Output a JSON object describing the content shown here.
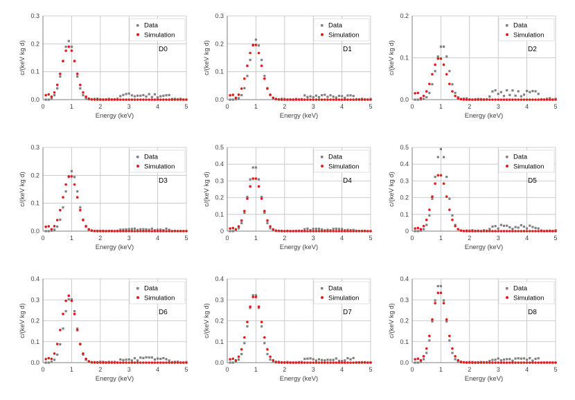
{
  "style": {
    "data_color": "#808080",
    "sim_color": "#e31a1c",
    "grid_color": "#bfbfbf",
    "axis_color": "#7f7f7f"
  },
  "chart_data": [
    {
      "type": "scatter",
      "title": "D0",
      "xlabel": "Energy (keV)",
      "ylabel": "c/(keV kg d)",
      "xlim": [
        0,
        5
      ],
      "ylim": [
        0,
        0.3
      ],
      "yticks": [
        "0.0",
        "0.1",
        "0.2",
        "0.3"
      ],
      "xticks": [
        "0",
        "1",
        "2",
        "3",
        "4",
        "5"
      ],
      "legend": [
        "Data",
        "Simulation"
      ],
      "series": [
        {
          "name": "Data",
          "peak": 0.21,
          "peak_x": 0.9,
          "tail": 0.015
        },
        {
          "name": "Simulation",
          "peak": 0.19,
          "peak_x": 0.9,
          "tail": 0.0
        }
      ]
    },
    {
      "type": "scatter",
      "title": "D1",
      "xlabel": "Energy (keV)",
      "ylabel": "c/(keV kg d)",
      "xlim": [
        0,
        5
      ],
      "ylim": [
        0,
        0.3
      ],
      "yticks": [
        "0.0",
        "0.1",
        "0.2",
        "0.3"
      ],
      "xticks": [
        "0",
        "1",
        "2",
        "3",
        "4",
        "5"
      ],
      "legend": [
        "Data",
        "Simulation"
      ],
      "series": [
        {
          "name": "Data",
          "peak": 0.215,
          "peak_x": 1.0,
          "tail": 0.013
        },
        {
          "name": "Simulation",
          "peak": 0.2,
          "peak_x": 0.95,
          "tail": 0.0
        }
      ]
    },
    {
      "type": "scatter",
      "title": "D2",
      "xlabel": "Energy (keV)",
      "ylabel": "c/(keV kg d)",
      "xlim": [
        0,
        5
      ],
      "ylim": [
        0,
        0.2
      ],
      "yticks": [
        "0.0",
        "0.1",
        "0.2"
      ],
      "xticks": [
        "0",
        "1",
        "2",
        "3",
        "4",
        "5"
      ],
      "legend": [
        "Data",
        "Simulation"
      ],
      "series": [
        {
          "name": "Data",
          "peak": 0.13,
          "peak_x": 1.05,
          "tail": 0.015
        },
        {
          "name": "Simulation",
          "peak": 0.1,
          "peak_x": 0.95,
          "tail": 0.0
        }
      ]
    },
    {
      "type": "scatter",
      "title": "D3",
      "xlabel": "Energy (keV)",
      "ylabel": "c/(keV kg d)",
      "xlim": [
        0,
        5
      ],
      "ylim": [
        0,
        0.3
      ],
      "yticks": [
        "0.0",
        "0.1",
        "0.2",
        "0.3"
      ],
      "xticks": [
        "0",
        "1",
        "2",
        "3",
        "4",
        "5"
      ],
      "legend": [
        "Data",
        "Simulation"
      ],
      "series": [
        {
          "name": "Data",
          "peak": 0.215,
          "peak_x": 1.0,
          "tail": 0.006
        },
        {
          "name": "Simulation",
          "peak": 0.2,
          "peak_x": 0.95,
          "tail": 0.0
        }
      ]
    },
    {
      "type": "scatter",
      "title": "D4",
      "xlabel": "Energy (keV)",
      "ylabel": "c/(keV kg d)",
      "xlim": [
        0,
        5
      ],
      "ylim": [
        0,
        0.5
      ],
      "yticks": [
        "0",
        "0.1",
        "0.2",
        "0.3",
        "0.4",
        "0.5"
      ],
      "xticks": [
        "0",
        "1",
        "2",
        "3",
        "4",
        "5"
      ],
      "legend": [
        "Data",
        "Simulation"
      ],
      "series": [
        {
          "name": "Data",
          "peak": 0.39,
          "peak_x": 0.95,
          "tail": 0.01
        },
        {
          "name": "Simulation",
          "peak": 0.32,
          "peak_x": 0.95,
          "tail": 0.0
        }
      ]
    },
    {
      "type": "scatter",
      "title": "D5",
      "xlabel": "Energy (keV)",
      "ylabel": "c/(keV kg d)",
      "xlim": [
        0,
        5
      ],
      "ylim": [
        0,
        0.5
      ],
      "yticks": [
        "0",
        "0.1",
        "0.2",
        "0.3",
        "0.4",
        "0.5"
      ],
      "xticks": [
        "0",
        "1",
        "2",
        "3",
        "4",
        "5"
      ],
      "legend": [
        "Data",
        "Simulation"
      ],
      "series": [
        {
          "name": "Data",
          "peak": 0.49,
          "peak_x": 1.0,
          "tail": 0.025
        },
        {
          "name": "Simulation",
          "peak": 0.34,
          "peak_x": 0.95,
          "tail": 0.0
        }
      ]
    },
    {
      "type": "scatter",
      "title": "D6",
      "xlabel": "Energy (keV)",
      "ylabel": "c/(keV kg d)",
      "xlim": [
        0,
        5
      ],
      "ylim": [
        0,
        0.4
      ],
      "yticks": [
        "0.0",
        "0.1",
        "0.2",
        "0.3",
        "0.4"
      ],
      "xticks": [
        "0",
        "1",
        "2",
        "3",
        "4",
        "5"
      ],
      "legend": [
        "Data",
        "Simulation"
      ],
      "series": [
        {
          "name": "Data",
          "peak": 0.31,
          "peak_x": 0.95,
          "tail": 0.018
        },
        {
          "name": "Simulation",
          "peak": 0.32,
          "peak_x": 0.9,
          "tail": 0.0
        }
      ]
    },
    {
      "type": "scatter",
      "title": "D7",
      "xlabel": "Energy (keV)",
      "ylabel": "c/(keV kg d)",
      "xlim": [
        0,
        5
      ],
      "ylim": [
        0,
        0.4
      ],
      "yticks": [
        "0.0",
        "0.1",
        "0.2",
        "0.3",
        "0.4"
      ],
      "xticks": [
        "0",
        "1",
        "2",
        "3",
        "4",
        "5"
      ],
      "legend": [
        "Data",
        "Simulation"
      ],
      "series": [
        {
          "name": "Data",
          "peak": 0.33,
          "peak_x": 0.95,
          "tail": 0.015
        },
        {
          "name": "Simulation",
          "peak": 0.32,
          "peak_x": 0.95,
          "tail": 0.0
        }
      ]
    },
    {
      "type": "scatter",
      "title": "D8",
      "xlabel": "Energy (keV)",
      "ylabel": "c/(keV kg d)",
      "xlim": [
        0,
        5
      ],
      "ylim": [
        0,
        0.4
      ],
      "yticks": [
        "0.0",
        "0.1",
        "0.2",
        "0.3",
        "0.4"
      ],
      "xticks": [
        "0",
        "1",
        "2",
        "3",
        "4",
        "5"
      ],
      "legend": [
        "Data",
        "Simulation"
      ],
      "series": [
        {
          "name": "Data",
          "peak": 0.375,
          "peak_x": 0.95,
          "tail": 0.015
        },
        {
          "name": "Simulation",
          "peak": 0.34,
          "peak_x": 0.95,
          "tail": 0.0
        }
      ]
    }
  ]
}
